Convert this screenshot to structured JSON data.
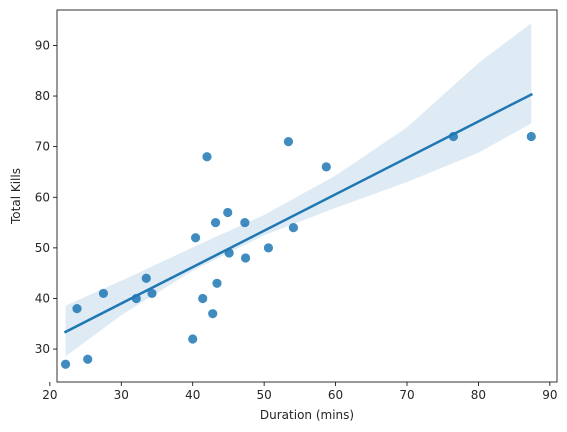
{
  "chart_data": {
    "type": "scatter",
    "title": "",
    "xlabel": "Duration (mins)",
    "ylabel": "Total Kills",
    "xlim": [
      21,
      91
    ],
    "ylim": [
      23.5,
      97
    ],
    "xticks": [
      20,
      30,
      40,
      50,
      60,
      70,
      80,
      90
    ],
    "yticks": [
      30,
      40,
      50,
      60,
      70,
      80,
      90
    ],
    "grid": false,
    "colors": {
      "point": "#1f77b4",
      "line": "#1f77b4",
      "band": "#1f77b4"
    },
    "points": [
      {
        "x": 22.2,
        "y": 27
      },
      {
        "x": 23.8,
        "y": 38
      },
      {
        "x": 25.3,
        "y": 28
      },
      {
        "x": 27.5,
        "y": 41
      },
      {
        "x": 32.1,
        "y": 40
      },
      {
        "x": 33.5,
        "y": 44
      },
      {
        "x": 34.3,
        "y": 41
      },
      {
        "x": 40.0,
        "y": 32
      },
      {
        "x": 40.4,
        "y": 52
      },
      {
        "x": 41.4,
        "y": 40
      },
      {
        "x": 42.0,
        "y": 68
      },
      {
        "x": 42.8,
        "y": 37
      },
      {
        "x": 43.2,
        "y": 55
      },
      {
        "x": 43.4,
        "y": 43
      },
      {
        "x": 44.9,
        "y": 57
      },
      {
        "x": 45.1,
        "y": 49
      },
      {
        "x": 47.3,
        "y": 55
      },
      {
        "x": 47.4,
        "y": 48
      },
      {
        "x": 50.6,
        "y": 50
      },
      {
        "x": 53.4,
        "y": 71
      },
      {
        "x": 54.1,
        "y": 54
      },
      {
        "x": 58.7,
        "y": 66
      },
      {
        "x": 76.5,
        "y": 72
      },
      {
        "x": 87.4,
        "y": 72
      }
    ],
    "regression": {
      "line": [
        {
          "x": 22.2,
          "y": 33.4
        },
        {
          "x": 87.4,
          "y": 80.3
        }
      ],
      "ci_band": {
        "x": [
          22.2,
          30,
          40,
          50,
          60,
          70,
          80,
          87.4
        ],
        "lower": [
          28.6,
          36.7,
          45.5,
          52.5,
          57.9,
          63.0,
          68.8,
          74.6
        ],
        "upper": [
          38.6,
          43.5,
          50.1,
          56.5,
          64.3,
          73.8,
          86.5,
          94.4
        ]
      }
    }
  }
}
